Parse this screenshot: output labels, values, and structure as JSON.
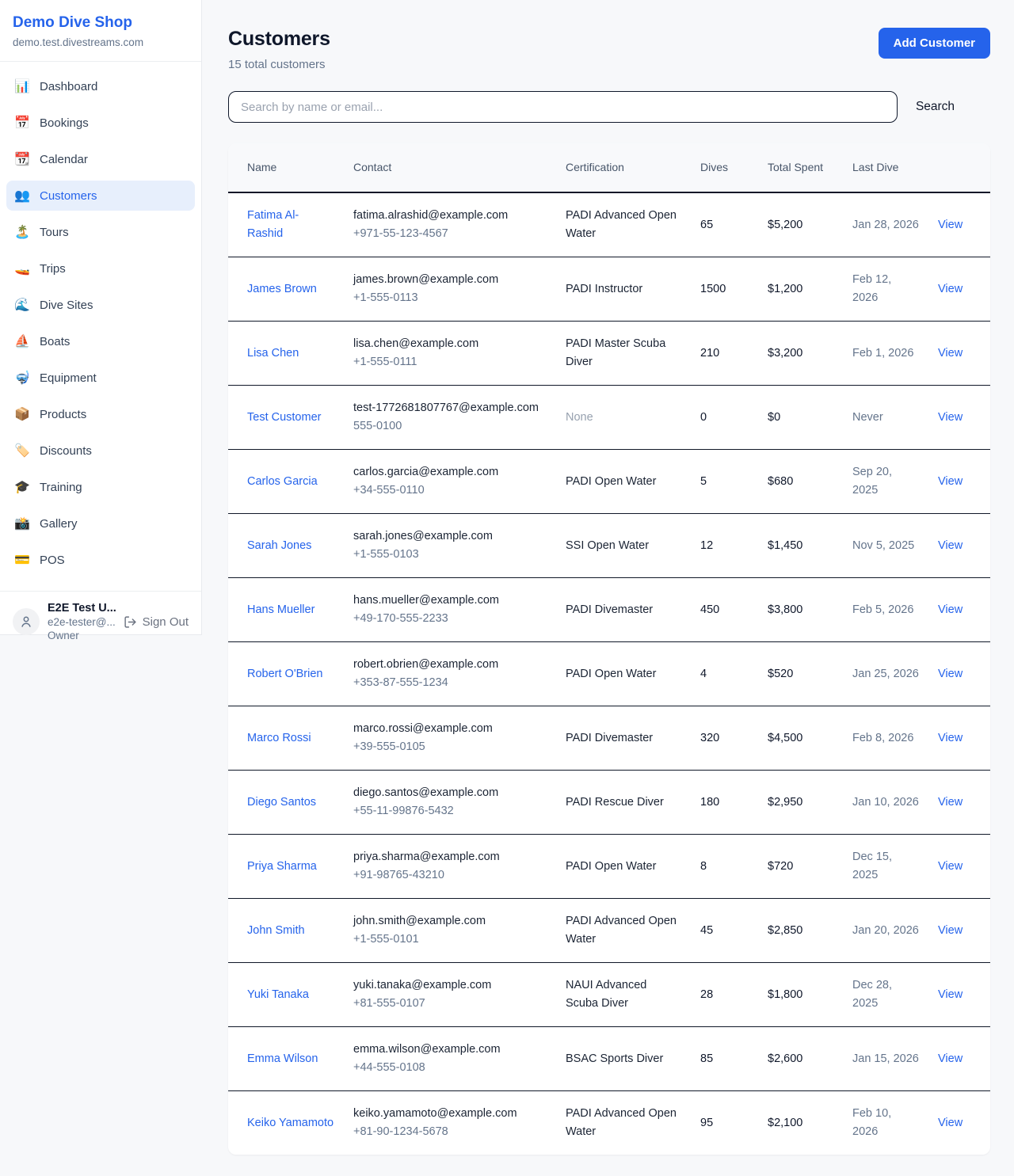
{
  "colors": {
    "accent": "#2563eb",
    "active_item_bg": "#e7effc",
    "page_bg": "#f7f8fa",
    "table_border": "#101828",
    "muted_text": "#64748b"
  },
  "sidebar": {
    "brand": {
      "name": "Demo Dive Shop",
      "domain": "demo.test.divestreams.com"
    },
    "items": [
      {
        "icon": "📊",
        "icon_name": "dashboard-icon",
        "label": "Dashboard",
        "active": false
      },
      {
        "icon": "📅",
        "icon_name": "bookings-calendar-icon",
        "label": "Bookings",
        "active": false
      },
      {
        "icon": "📆",
        "icon_name": "calendar-icon",
        "label": "Calendar",
        "active": false
      },
      {
        "icon": "👥",
        "icon_name": "customers-people-icon",
        "label": "Customers",
        "active": true
      },
      {
        "icon": "🏝️",
        "icon_name": "tours-island-icon",
        "label": "Tours",
        "active": false
      },
      {
        "icon": "🚤",
        "icon_name": "trips-boat-icon",
        "label": "Trips",
        "active": false
      },
      {
        "icon": "🌊",
        "icon_name": "dive-sites-wave-icon",
        "label": "Dive Sites",
        "active": false
      },
      {
        "icon": "⛵",
        "icon_name": "boats-sailboat-icon",
        "label": "Boats",
        "active": false
      },
      {
        "icon": "🤿",
        "icon_name": "equipment-mask-icon",
        "label": "Equipment",
        "active": false
      },
      {
        "icon": "📦",
        "icon_name": "products-package-icon",
        "label": "Products",
        "active": false
      },
      {
        "icon": "🏷️",
        "icon_name": "discounts-tag-icon",
        "label": "Discounts",
        "active": false
      },
      {
        "icon": "🎓",
        "icon_name": "training-cap-icon",
        "label": "Training",
        "active": false
      },
      {
        "icon": "📸",
        "icon_name": "gallery-camera-icon",
        "label": "Gallery",
        "active": false
      },
      {
        "icon": "💳",
        "icon_name": "pos-card-icon",
        "label": "POS",
        "active": false
      }
    ],
    "user": {
      "name": "E2E Test U...",
      "email": "e2e-tester@...",
      "role": "Owner",
      "sign_out_label": "Sign Out"
    }
  },
  "header": {
    "title": "Customers",
    "subtitle": "15 total customers",
    "add_button_label": "Add Customer"
  },
  "search": {
    "placeholder": "Search by name or email...",
    "button_label": "Search"
  },
  "table": {
    "columns": [
      "Name",
      "Contact",
      "Certification",
      "Dives",
      "Total Spent",
      "Last Dive",
      ""
    ],
    "view_label": "View",
    "rows": [
      {
        "name": "Fatima Al-Rashid",
        "email": "fatima.alrashid@example.com",
        "phone": "+971-55-123-4567",
        "certification": "PADI Advanced Open Water",
        "dives": "65",
        "total_spent": "$5,200",
        "last_dive": "Jan 28, 2026"
      },
      {
        "name": "James Brown",
        "email": "james.brown@example.com",
        "phone": "+1-555-0113",
        "certification": "PADI Instructor",
        "dives": "1500",
        "total_spent": "$1,200",
        "last_dive": "Feb 12, 2026"
      },
      {
        "name": "Lisa Chen",
        "email": "lisa.chen@example.com",
        "phone": "+1-555-0111",
        "certification": "PADI Master Scuba Diver",
        "dives": "210",
        "total_spent": "$3,200",
        "last_dive": "Feb 1, 2026"
      },
      {
        "name": "Test Customer",
        "email": "test-1772681807767@example.com",
        "phone": "555-0100",
        "certification": "None",
        "dives": "0",
        "total_spent": "$0",
        "last_dive": "Never"
      },
      {
        "name": "Carlos Garcia",
        "email": "carlos.garcia@example.com",
        "phone": "+34-555-0110",
        "certification": "PADI Open Water",
        "dives": "5",
        "total_spent": "$680",
        "last_dive": "Sep 20, 2025"
      },
      {
        "name": "Sarah Jones",
        "email": "sarah.jones@example.com",
        "phone": "+1-555-0103",
        "certification": "SSI Open Water",
        "dives": "12",
        "total_spent": "$1,450",
        "last_dive": "Nov 5, 2025"
      },
      {
        "name": "Hans Mueller",
        "email": "hans.mueller@example.com",
        "phone": "+49-170-555-2233",
        "certification": "PADI Divemaster",
        "dives": "450",
        "total_spent": "$3,800",
        "last_dive": "Feb 5, 2026"
      },
      {
        "name": "Robert O'Brien",
        "email": "robert.obrien@example.com",
        "phone": "+353-87-555-1234",
        "certification": "PADI Open Water",
        "dives": "4",
        "total_spent": "$520",
        "last_dive": "Jan 25, 2026"
      },
      {
        "name": "Marco Rossi",
        "email": "marco.rossi@example.com",
        "phone": "+39-555-0105",
        "certification": "PADI Divemaster",
        "dives": "320",
        "total_spent": "$4,500",
        "last_dive": "Feb 8, 2026"
      },
      {
        "name": "Diego Santos",
        "email": "diego.santos@example.com",
        "phone": "+55-11-99876-5432",
        "certification": "PADI Rescue Diver",
        "dives": "180",
        "total_spent": "$2,950",
        "last_dive": "Jan 10, 2026"
      },
      {
        "name": "Priya Sharma",
        "email": "priya.sharma@example.com",
        "phone": "+91-98765-43210",
        "certification": "PADI Open Water",
        "dives": "8",
        "total_spent": "$720",
        "last_dive": "Dec 15, 2025"
      },
      {
        "name": "John Smith",
        "email": "john.smith@example.com",
        "phone": "+1-555-0101",
        "certification": "PADI Advanced Open Water",
        "dives": "45",
        "total_spent": "$2,850",
        "last_dive": "Jan 20, 2026"
      },
      {
        "name": "Yuki Tanaka",
        "email": "yuki.tanaka@example.com",
        "phone": "+81-555-0107",
        "certification": "NAUI Advanced Scuba Diver",
        "dives": "28",
        "total_spent": "$1,800",
        "last_dive": "Dec 28, 2025"
      },
      {
        "name": "Emma Wilson",
        "email": "emma.wilson@example.com",
        "phone": "+44-555-0108",
        "certification": "BSAC Sports Diver",
        "dives": "85",
        "total_spent": "$2,600",
        "last_dive": "Jan 15, 2026"
      },
      {
        "name": "Keiko Yamamoto",
        "email": "keiko.yamamoto@example.com",
        "phone": "+81-90-1234-5678",
        "certification": "PADI Advanced Open Water",
        "dives": "95",
        "total_spent": "$2,100",
        "last_dive": "Feb 10, 2026"
      }
    ]
  }
}
